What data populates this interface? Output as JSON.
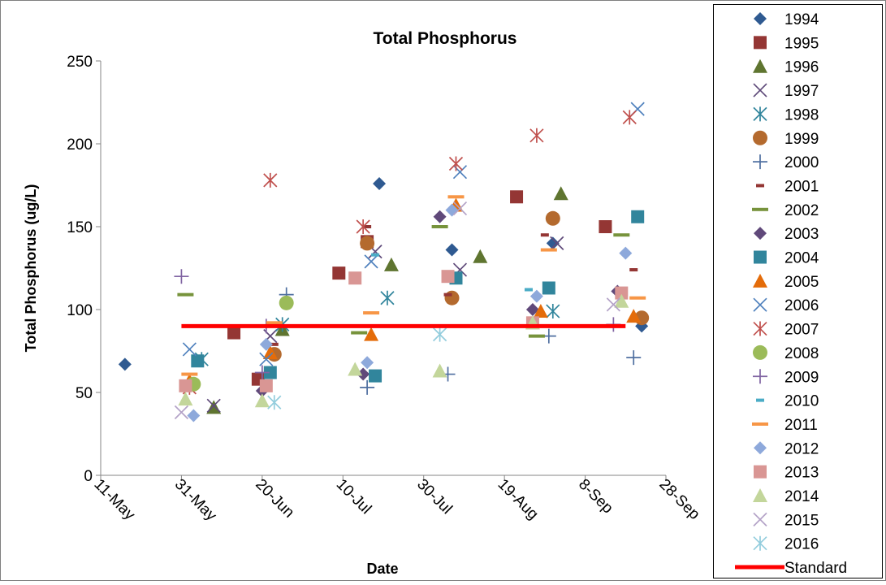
{
  "chart_data": {
    "type": "scatter",
    "title": "Total Phosphorus",
    "xlabel": "Date",
    "ylabel": "Total Phosphorus (ug/L)",
    "ylim": [
      0,
      250
    ],
    "yticks": [
      0,
      50,
      100,
      150,
      200,
      250
    ],
    "xlim": [
      "2001-05-11",
      "2001-09-28"
    ],
    "xticks": [
      {
        "date": "2001-05-11",
        "label": "11-May"
      },
      {
        "date": "2001-05-31",
        "label": "31-May"
      },
      {
        "date": "2001-06-20",
        "label": "20-Jun"
      },
      {
        "date": "2001-07-10",
        "label": "10-Jul"
      },
      {
        "date": "2001-07-30",
        "label": "30-Jul"
      },
      {
        "date": "2001-08-19",
        "label": "19-Aug"
      },
      {
        "date": "2001-09-08",
        "label": "8-Sep"
      },
      {
        "date": "2001-09-28",
        "label": "28-Sep"
      }
    ],
    "grid": false,
    "legend_position": "right",
    "series": [
      {
        "name": "1994",
        "marker": "diamond",
        "color": "#2F5A91",
        "points": [
          [
            "2001-05-17",
            67
          ],
          [
            "2001-07-19",
            176
          ],
          [
            "2001-08-06",
            136
          ],
          [
            "2001-08-31",
            140
          ],
          [
            "2001-09-22",
            90
          ]
        ]
      },
      {
        "name": "1995",
        "marker": "square",
        "color": "#943634",
        "points": [
          [
            "2001-06-13",
            86
          ],
          [
            "2001-06-19",
            58
          ],
          [
            "2001-07-09",
            122
          ],
          [
            "2001-07-16",
            141
          ],
          [
            "2001-08-22",
            168
          ],
          [
            "2001-09-13",
            150
          ]
        ]
      },
      {
        "name": "1996",
        "marker": "triangle",
        "color": "#5F7530",
        "points": [
          [
            "2001-06-08",
            41
          ],
          [
            "2001-06-25",
            88
          ],
          [
            "2001-07-22",
            127
          ],
          [
            "2001-08-13",
            132
          ],
          [
            "2001-09-02",
            170
          ]
        ]
      },
      {
        "name": "1997",
        "marker": "x",
        "color": "#5F4A7A",
        "points": [
          [
            "2001-06-08",
            42
          ],
          [
            "2001-06-22",
            84
          ],
          [
            "2001-07-18",
            135
          ],
          [
            "2001-08-08",
            124
          ],
          [
            "2001-09-01",
            140
          ]
        ]
      },
      {
        "name": "1998",
        "marker": "asterisk",
        "color": "#31859C",
        "points": [
          [
            "2001-06-05",
            70
          ],
          [
            "2001-06-25",
            91
          ],
          [
            "2001-07-21",
            107
          ],
          [
            "2001-08-31",
            99
          ]
        ]
      },
      {
        "name": "1999",
        "marker": "circle",
        "color": "#B46A2E",
        "points": [
          [
            "2001-06-23",
            73
          ],
          [
            "2001-07-16",
            140
          ],
          [
            "2001-08-06",
            107
          ],
          [
            "2001-08-31",
            155
          ],
          [
            "2001-09-22",
            95
          ]
        ]
      },
      {
        "name": "2000",
        "marker": "plus",
        "color": "#4F6FA0",
        "points": [
          [
            "2001-06-26",
            109
          ],
          [
            "2001-07-16",
            53
          ],
          [
            "2001-08-05",
            61
          ],
          [
            "2001-08-30",
            84
          ],
          [
            "2001-09-20",
            71
          ]
        ]
      },
      {
        "name": "2001",
        "marker": "dash",
        "color": "#943634",
        "points": [
          [
            "2001-06-23",
            79
          ],
          [
            "2001-07-16",
            150
          ],
          [
            "2001-08-05",
            109
          ],
          [
            "2001-08-29",
            145
          ],
          [
            "2001-09-20",
            124
          ]
        ]
      },
      {
        "name": "2002",
        "marker": "dash-long",
        "color": "#77933C",
        "points": [
          [
            "2001-06-01",
            109
          ],
          [
            "2001-07-14",
            86
          ],
          [
            "2001-08-03",
            150
          ],
          [
            "2001-08-27",
            84
          ],
          [
            "2001-09-17",
            145
          ]
        ]
      },
      {
        "name": "2003",
        "marker": "diamond",
        "color": "#60497A",
        "points": [
          [
            "2001-06-20",
            51
          ],
          [
            "2001-07-15",
            61
          ],
          [
            "2001-08-03",
            156
          ],
          [
            "2001-08-26",
            100
          ],
          [
            "2001-09-16",
            111
          ]
        ]
      },
      {
        "name": "2004",
        "marker": "square",
        "color": "#31859C",
        "points": [
          [
            "2001-06-04",
            69
          ],
          [
            "2001-06-22",
            62
          ],
          [
            "2001-07-18",
            60
          ],
          [
            "2001-08-07",
            119
          ],
          [
            "2001-08-30",
            113
          ],
          [
            "2001-09-21",
            156
          ]
        ]
      },
      {
        "name": "2005",
        "marker": "triangle",
        "color": "#E46C0A",
        "points": [
          [
            "2001-06-02",
            57
          ],
          [
            "2001-06-22",
            74
          ],
          [
            "2001-07-17",
            85
          ],
          [
            "2001-08-07",
            163
          ],
          [
            "2001-08-28",
            99
          ],
          [
            "2001-09-20",
            96
          ]
        ]
      },
      {
        "name": "2006",
        "marker": "x",
        "color": "#4F81BD",
        "points": [
          [
            "2001-06-02",
            76
          ],
          [
            "2001-06-21",
            70
          ],
          [
            "2001-07-17",
            129
          ],
          [
            "2001-08-08",
            183
          ],
          [
            "2001-09-21",
            221
          ]
        ]
      },
      {
        "name": "2007",
        "marker": "asterisk",
        "color": "#C0504D",
        "points": [
          [
            "2001-06-02",
            53
          ],
          [
            "2001-06-22",
            178
          ],
          [
            "2001-07-15",
            150
          ],
          [
            "2001-08-07",
            188
          ],
          [
            "2001-08-27",
            205
          ],
          [
            "2001-09-19",
            216
          ]
        ]
      },
      {
        "name": "2008",
        "marker": "circle",
        "color": "#9BBB59",
        "points": [
          [
            "2001-06-03",
            55
          ],
          [
            "2001-06-26",
            104
          ]
        ]
      },
      {
        "name": "2009",
        "marker": "plus",
        "color": "#8064A2",
        "points": [
          [
            "2001-05-31",
            120
          ],
          [
            "2001-06-20",
            62
          ],
          [
            "2001-06-21",
            90
          ],
          [
            "2001-09-15",
            91
          ]
        ]
      },
      {
        "name": "2010",
        "marker": "dash",
        "color": "#4BACC6",
        "points": [
          [
            "2001-07-18",
            133
          ],
          [
            "2001-08-25",
            112
          ]
        ]
      },
      {
        "name": "2011",
        "marker": "dash-long",
        "color": "#F79646",
        "points": [
          [
            "2001-06-02",
            61
          ],
          [
            "2001-06-23",
            92
          ],
          [
            "2001-07-17",
            98
          ],
          [
            "2001-08-07",
            168
          ],
          [
            "2001-08-30",
            136
          ],
          [
            "2001-09-21",
            107
          ]
        ]
      },
      {
        "name": "2012",
        "marker": "diamond",
        "color": "#8EA9DB",
        "points": [
          [
            "2001-06-03",
            36
          ],
          [
            "2001-06-21",
            79
          ],
          [
            "2001-07-16",
            68
          ],
          [
            "2001-08-06",
            160
          ],
          [
            "2001-08-27",
            108
          ],
          [
            "2001-09-18",
            134
          ]
        ]
      },
      {
        "name": "2013",
        "marker": "square",
        "color": "#D99694",
        "points": [
          [
            "2001-06-01",
            54
          ],
          [
            "2001-06-21",
            54
          ],
          [
            "2001-07-13",
            119
          ],
          [
            "2001-08-05",
            120
          ],
          [
            "2001-08-26",
            92
          ],
          [
            "2001-09-17",
            110
          ]
        ]
      },
      {
        "name": "2014",
        "marker": "triangle",
        "color": "#C3D69B",
        "points": [
          [
            "2001-06-01",
            46
          ],
          [
            "2001-06-20",
            45
          ],
          [
            "2001-07-13",
            64
          ],
          [
            "2001-08-03",
            63
          ],
          [
            "2001-08-26",
            92
          ],
          [
            "2001-09-17",
            105
          ]
        ]
      },
      {
        "name": "2015",
        "marker": "x",
        "color": "#B3A2C7",
        "points": [
          [
            "2001-05-31",
            38
          ],
          [
            "2001-08-08",
            161
          ],
          [
            "2001-09-15",
            103
          ]
        ]
      },
      {
        "name": "2016",
        "marker": "asterisk",
        "color": "#93CDDD",
        "points": [
          [
            "2001-06-23",
            44
          ],
          [
            "2001-08-03",
            85
          ]
        ]
      },
      {
        "name": "Standard",
        "marker": "line",
        "color": "#FF0000",
        "points": [
          [
            "2001-05-31",
            90
          ],
          [
            "2001-09-18",
            90
          ]
        ]
      }
    ]
  }
}
